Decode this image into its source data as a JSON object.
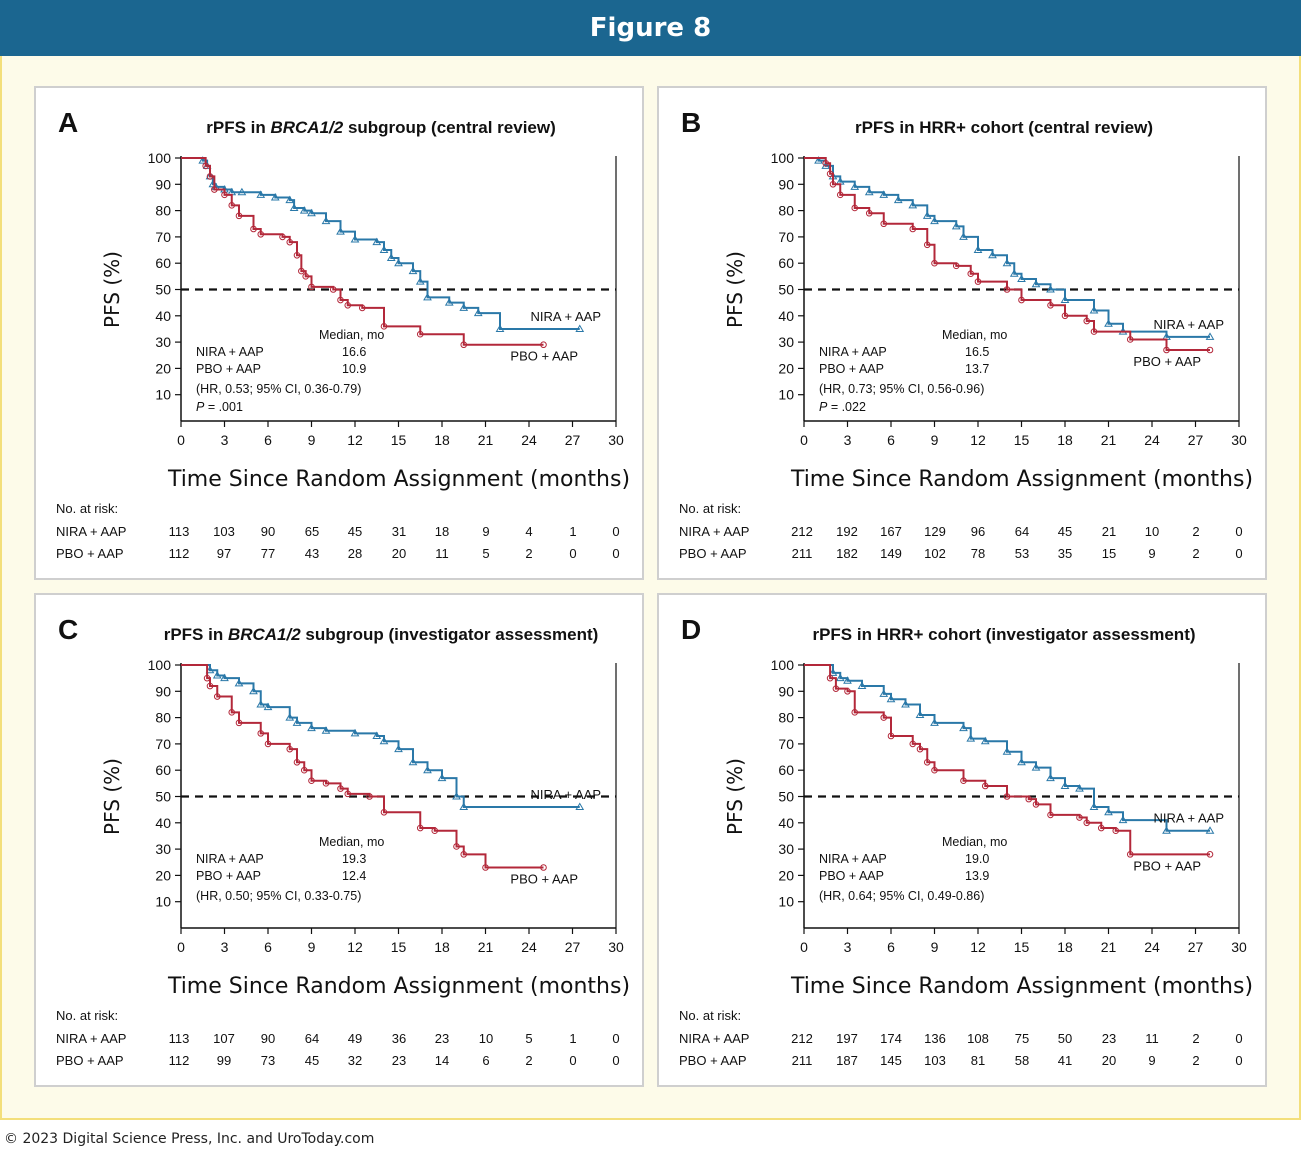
{
  "figure_title": "Figure 8",
  "footer": "© 2023 Digital Science Press, Inc. and UroToday.com",
  "colors": {
    "header": "#1b6690",
    "nira": "#2a78a8",
    "pbo": "#b3283a",
    "frame": "#f3df7b"
  },
  "chart_data": [
    {
      "panel": "A",
      "type": "line",
      "title_prefix": "rPFS in ",
      "title_italic": "BRCA1/2",
      "title_suffix": " subgroup (central review)",
      "xlabel": "Time Since Random Assignment (months)",
      "ylabel": "PFS (%)",
      "xlim": [
        0,
        30
      ],
      "ylim": [
        0,
        100
      ],
      "xticks": [
        0,
        3,
        6,
        9,
        12,
        15,
        18,
        21,
        24,
        27,
        30
      ],
      "yticks": [
        10,
        20,
        30,
        40,
        50,
        60,
        70,
        80,
        90,
        100
      ],
      "reference_line": 50,
      "median_header": "Median, mo",
      "median_rows": [
        {
          "label": "NIRA + AAP",
          "value": "16.6"
        },
        {
          "label": "PBO + AAP",
          "value": "10.9"
        }
      ],
      "hr_text": "(HR, 0.53; 95% CI, 0.36-0.79)",
      "p_label": "P",
      "p_value": " = .001",
      "series": [
        {
          "name": "NIRA + AAP",
          "marker": "triangle",
          "x": [
            0,
            1.5,
            1.8,
            2.0,
            2.2,
            2.4,
            3.0,
            3.5,
            4.2,
            5.5,
            6.5,
            7.5,
            7.8,
            8.5,
            9.0,
            10.0,
            11.0,
            12.0,
            13.5,
            14.0,
            14.5,
            15.0,
            16.0,
            16.5,
            17.0,
            18.5,
            19.5,
            20.5,
            22.0,
            27.5
          ],
          "y": [
            100,
            99,
            97,
            93,
            90,
            89,
            88,
            87,
            87,
            86,
            85,
            84,
            81,
            80,
            79,
            76,
            72,
            69,
            68,
            65,
            62,
            60,
            57,
            53,
            47,
            45,
            43,
            41,
            35,
            35
          ]
        },
        {
          "name": "PBO + AAP",
          "marker": "circle",
          "x": [
            0,
            1.7,
            2.0,
            2.3,
            3.0,
            3.5,
            4.0,
            5.0,
            5.5,
            7.0,
            7.5,
            8.0,
            8.3,
            8.6,
            9.0,
            10.5,
            11.0,
            11.5,
            12.5,
            14.0,
            16.5,
            19.5,
            25.0
          ],
          "y": [
            100,
            97,
            93,
            88,
            86,
            82,
            78,
            73,
            71,
            70,
            68,
            63,
            57,
            55,
            51,
            50,
            46,
            44,
            43,
            36,
            33,
            29,
            29
          ]
        }
      ],
      "risk_label": "No. at risk:",
      "risk_rows": [
        {
          "name": "NIRA + AAP",
          "values": [
            "113",
            "103",
            "90",
            "65",
            "45",
            "31",
            "18",
            "9",
            "4",
            "1",
            "0"
          ]
        },
        {
          "name": "PBO + AAP",
          "values": [
            "112",
            "97",
            "77",
            "43",
            "28",
            "20",
            "11",
            "5",
            "2",
            "0",
            "0"
          ]
        }
      ]
    },
    {
      "panel": "B",
      "type": "line",
      "title_prefix": "rPFS in HRR+ cohort (central review)",
      "title_italic": "",
      "title_suffix": "",
      "xlabel": "Time Since Random Assignment (months)",
      "ylabel": "PFS (%)",
      "xlim": [
        0,
        30
      ],
      "ylim": [
        0,
        100
      ],
      "xticks": [
        0,
        3,
        6,
        9,
        12,
        15,
        18,
        21,
        24,
        27,
        30
      ],
      "yticks": [
        10,
        20,
        30,
        40,
        50,
        60,
        70,
        80,
        90,
        100
      ],
      "reference_line": 50,
      "median_header": "Median, mo",
      "median_rows": [
        {
          "label": "NIRA + AAP",
          "value": "16.5"
        },
        {
          "label": "PBO + AAP",
          "value": "13.7"
        }
      ],
      "hr_text": "(HR, 0.73; 95% CI, 0.56-0.96)",
      "p_label": "P",
      "p_value": " = .022",
      "series": [
        {
          "name": "NIRA + AAP",
          "marker": "triangle",
          "x": [
            0,
            1.0,
            1.5,
            2.0,
            2.5,
            3.5,
            4.5,
            5.5,
            6.5,
            7.5,
            8.5,
            9.0,
            10.5,
            11.0,
            12.0,
            13.0,
            14.0,
            14.5,
            15.0,
            16.0,
            17.0,
            18.0,
            20.0,
            21.0,
            22.0,
            25.0,
            28.0
          ],
          "y": [
            100,
            99,
            97,
            93,
            91,
            89,
            87,
            86,
            84,
            82,
            78,
            76,
            74,
            70,
            65,
            63,
            60,
            56,
            54,
            52,
            50,
            46,
            42,
            37,
            34,
            32,
            32
          ]
        },
        {
          "name": "PBO + AAP",
          "marker": "circle",
          "x": [
            0,
            1.5,
            1.8,
            2.0,
            2.5,
            3.5,
            4.5,
            5.5,
            7.5,
            8.5,
            9.0,
            10.5,
            11.5,
            12.0,
            14.0,
            15.0,
            17.0,
            18.0,
            19.5,
            20.0,
            22.5,
            25.0,
            28.0
          ],
          "y": [
            100,
            98,
            94,
            90,
            86,
            81,
            79,
            75,
            73,
            67,
            60,
            59,
            56,
            53,
            50,
            46,
            44,
            40,
            38,
            34,
            31,
            27,
            27
          ]
        }
      ],
      "risk_label": "No. at risk:",
      "risk_rows": [
        {
          "name": "NIRA + AAP",
          "values": [
            "212",
            "192",
            "167",
            "129",
            "96",
            "64",
            "45",
            "21",
            "10",
            "2",
            "0"
          ]
        },
        {
          "name": "PBO + AAP",
          "values": [
            "211",
            "182",
            "149",
            "102",
            "78",
            "53",
            "35",
            "15",
            "9",
            "2",
            "0"
          ]
        }
      ]
    },
    {
      "panel": "C",
      "type": "line",
      "title_prefix": "rPFS in ",
      "title_italic": "BRCA1/2",
      "title_suffix": " subgroup (investigator assessment)",
      "xlabel": "Time Since Random Assignment (months)",
      "ylabel": "PFS (%)",
      "xlim": [
        0,
        30
      ],
      "ylim": [
        0,
        100
      ],
      "xticks": [
        0,
        3,
        6,
        9,
        12,
        15,
        18,
        21,
        24,
        27,
        30
      ],
      "yticks": [
        10,
        20,
        30,
        40,
        50,
        60,
        70,
        80,
        90,
        100
      ],
      "reference_line": 50,
      "median_header": "Median, mo",
      "median_rows": [
        {
          "label": "NIRA + AAP",
          "value": "19.3"
        },
        {
          "label": "PBO + AAP",
          "value": "12.4"
        }
      ],
      "hr_text": "(HR, 0.50; 95% CI, 0.33-0.75)",
      "p_label": "",
      "p_value": "",
      "series": [
        {
          "name": "NIRA + AAP",
          "marker": "triangle",
          "x": [
            0,
            2.0,
            2.5,
            3.0,
            4.0,
            5.0,
            5.5,
            6.0,
            7.5,
            8.0,
            9.0,
            10.0,
            12.0,
            13.5,
            14.0,
            15.0,
            16.0,
            17.0,
            18.0,
            19.0,
            19.5,
            27.5
          ],
          "y": [
            100,
            98,
            96,
            95,
            93,
            90,
            85,
            84,
            80,
            78,
            76,
            75,
            74,
            73,
            71,
            68,
            63,
            60,
            57,
            50,
            46,
            46
          ]
        },
        {
          "name": "PBO + AAP",
          "marker": "circle",
          "x": [
            0,
            1.8,
            2.0,
            2.5,
            3.5,
            4.0,
            5.5,
            6.0,
            7.5,
            8.0,
            8.5,
            9.0,
            10.0,
            11.0,
            11.5,
            13.0,
            14.0,
            16.5,
            17.5,
            19.0,
            19.5,
            21.0,
            25.0
          ],
          "y": [
            100,
            95,
            92,
            88,
            82,
            78,
            74,
            70,
            68,
            63,
            60,
            56,
            55,
            53,
            51,
            50,
            44,
            38,
            37,
            31,
            28,
            23,
            23
          ]
        }
      ],
      "risk_label": "No. at risk:",
      "risk_rows": [
        {
          "name": "NIRA + AAP",
          "values": [
            "113",
            "107",
            "90",
            "64",
            "49",
            "36",
            "23",
            "10",
            "5",
            "1",
            "0"
          ]
        },
        {
          "name": "PBO + AAP",
          "values": [
            "112",
            "99",
            "73",
            "45",
            "32",
            "23",
            "14",
            "6",
            "2",
            "0",
            "0"
          ]
        }
      ]
    },
    {
      "panel": "D",
      "type": "line",
      "title_prefix": "rPFS in HRR+ cohort (investigator assessment)",
      "title_italic": "",
      "title_suffix": "",
      "xlabel": "Time Since Random Assignment (months)",
      "ylabel": "PFS (%)",
      "xlim": [
        0,
        30
      ],
      "ylim": [
        0,
        100
      ],
      "xticks": [
        0,
        3,
        6,
        9,
        12,
        15,
        18,
        21,
        24,
        27,
        30
      ],
      "yticks": [
        10,
        20,
        30,
        40,
        50,
        60,
        70,
        80,
        90,
        100
      ],
      "reference_line": 50,
      "median_header": "Median, mo",
      "median_rows": [
        {
          "label": "NIRA + AAP",
          "value": "19.0"
        },
        {
          "label": "PBO + AAP",
          "value": "13.9"
        }
      ],
      "hr_text": "(HR, 0.64; 95% CI, 0.49-0.86)",
      "p_label": "",
      "p_value": "",
      "series": [
        {
          "name": "NIRA + AAP",
          "marker": "triangle",
          "x": [
            0,
            2.0,
            2.5,
            3.0,
            4.0,
            5.5,
            6.0,
            7.0,
            8.0,
            9.0,
            11.0,
            11.5,
            12.5,
            14.0,
            15.0,
            16.0,
            17.0,
            18.0,
            19.0,
            20.0,
            21.0,
            22.0,
            25.0,
            28.0
          ],
          "y": [
            100,
            97,
            95,
            94,
            92,
            89,
            87,
            85,
            81,
            78,
            76,
            72,
            71,
            67,
            63,
            61,
            57,
            54,
            53,
            46,
            44,
            41,
            37,
            37
          ]
        },
        {
          "name": "PBO + AAP",
          "marker": "circle",
          "x": [
            0,
            1.8,
            2.2,
            3.0,
            3.5,
            5.5,
            6.0,
            7.5,
            8.0,
            8.5,
            9.0,
            11.0,
            12.5,
            14.0,
            15.5,
            16.0,
            17.0,
            19.0,
            19.5,
            20.5,
            21.5,
            22.5,
            28.0
          ],
          "y": [
            100,
            95,
            91,
            90,
            82,
            80,
            73,
            70,
            68,
            63,
            60,
            56,
            54,
            50,
            49,
            47,
            43,
            42,
            40,
            38,
            37,
            28,
            28
          ]
        }
      ],
      "risk_label": "No. at risk:",
      "risk_rows": [
        {
          "name": "NIRA + AAP",
          "values": [
            "212",
            "197",
            "174",
            "136",
            "108",
            "75",
            "50",
            "23",
            "11",
            "2",
            "0"
          ]
        },
        {
          "name": "PBO + AAP",
          "values": [
            "211",
            "187",
            "145",
            "103",
            "81",
            "58",
            "41",
            "20",
            "9",
            "2",
            "0"
          ]
        }
      ]
    }
  ]
}
